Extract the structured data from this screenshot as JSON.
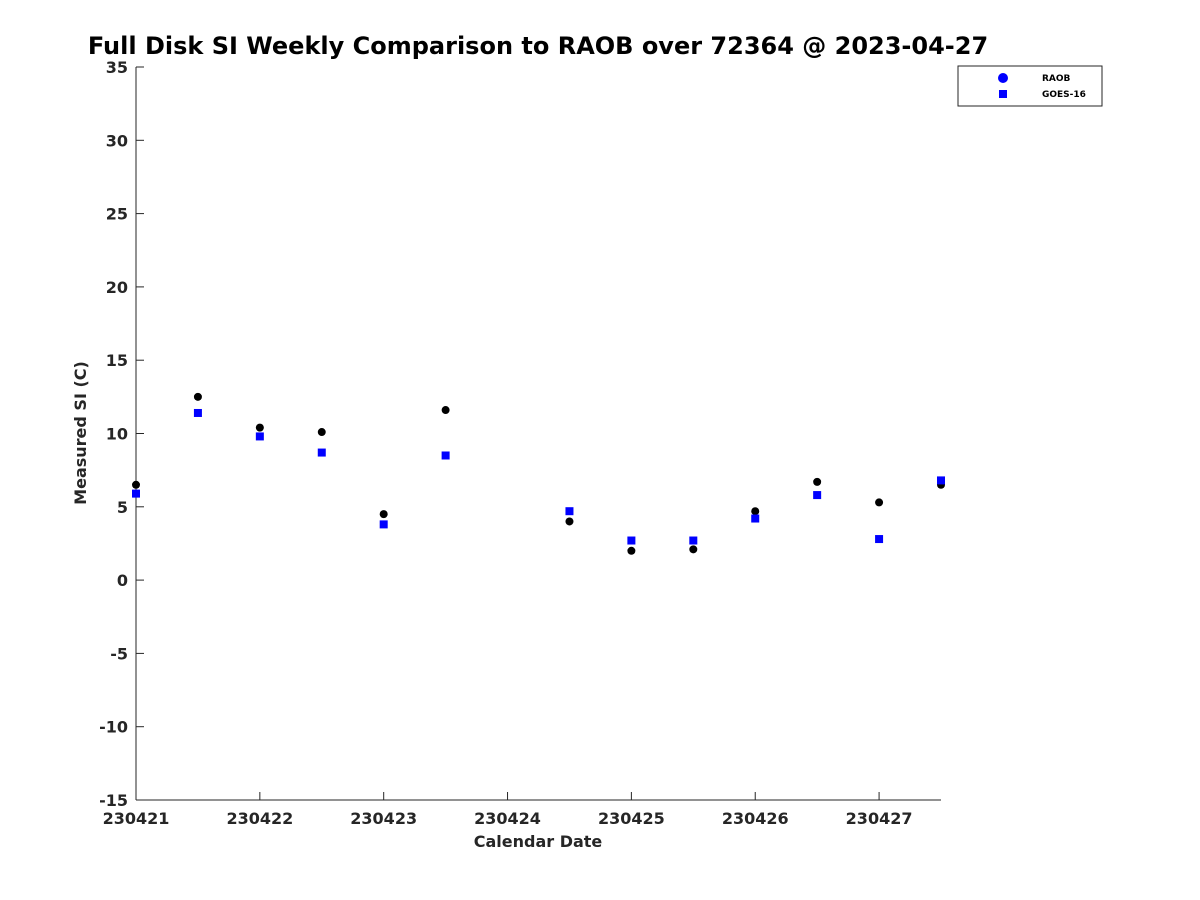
{
  "chart_data": {
    "type": "scatter",
    "title": "Full Disk SI Weekly Comparison to RAOB over 72364 @ 2023-04-27",
    "xlabel": "Calendar Date",
    "ylabel": "Measured SI (C)",
    "x_tick_labels": [
      "230421",
      "230422",
      "230423",
      "230424",
      "230425",
      "230426",
      "230427"
    ],
    "y_ticks": [
      -15,
      -10,
      -5,
      0,
      5,
      10,
      15,
      20,
      25,
      30,
      35
    ],
    "xlim": [
      "2023-04-21",
      "2023-04-27 12:00"
    ],
    "ylim": [
      -15,
      35
    ],
    "grid": false,
    "legend_position": "top-right",
    "series": [
      {
        "name": "RAOB",
        "marker": "circle",
        "color": "#000000",
        "legend_color": "#0000ff",
        "points": [
          {
            "x": "2023-04-21 00:00",
            "y": 6.5
          },
          {
            "x": "2023-04-21 12:00",
            "y": 12.5
          },
          {
            "x": "2023-04-22 00:00",
            "y": 10.4
          },
          {
            "x": "2023-04-22 12:00",
            "y": 10.1
          },
          {
            "x": "2023-04-23 00:00",
            "y": 4.5
          },
          {
            "x": "2023-04-23 12:00",
            "y": 11.6
          },
          {
            "x": "2023-04-24 12:00",
            "y": 4.0
          },
          {
            "x": "2023-04-25 00:00",
            "y": 2.0
          },
          {
            "x": "2023-04-25 12:00",
            "y": 2.1
          },
          {
            "x": "2023-04-26 00:00",
            "y": 4.7
          },
          {
            "x": "2023-04-26 12:00",
            "y": 6.7
          },
          {
            "x": "2023-04-27 00:00",
            "y": 5.3
          },
          {
            "x": "2023-04-27 12:00",
            "y": 6.5
          }
        ]
      },
      {
        "name": "GOES-16",
        "marker": "square",
        "color": "#0000ff",
        "points": [
          {
            "x": "2023-04-21 00:00",
            "y": 5.9
          },
          {
            "x": "2023-04-21 12:00",
            "y": 11.4
          },
          {
            "x": "2023-04-22 00:00",
            "y": 9.8
          },
          {
            "x": "2023-04-22 12:00",
            "y": 8.7
          },
          {
            "x": "2023-04-23 00:00",
            "y": 3.8
          },
          {
            "x": "2023-04-23 12:00",
            "y": 8.5
          },
          {
            "x": "2023-04-24 12:00",
            "y": 4.7
          },
          {
            "x": "2023-04-25 00:00",
            "y": 2.7
          },
          {
            "x": "2023-04-25 12:00",
            "y": 2.7
          },
          {
            "x": "2023-04-26 00:00",
            "y": 4.2
          },
          {
            "x": "2023-04-26 12:00",
            "y": 5.8
          },
          {
            "x": "2023-04-27 00:00",
            "y": 2.8
          },
          {
            "x": "2023-04-27 12:00",
            "y": 6.8
          }
        ]
      }
    ]
  }
}
